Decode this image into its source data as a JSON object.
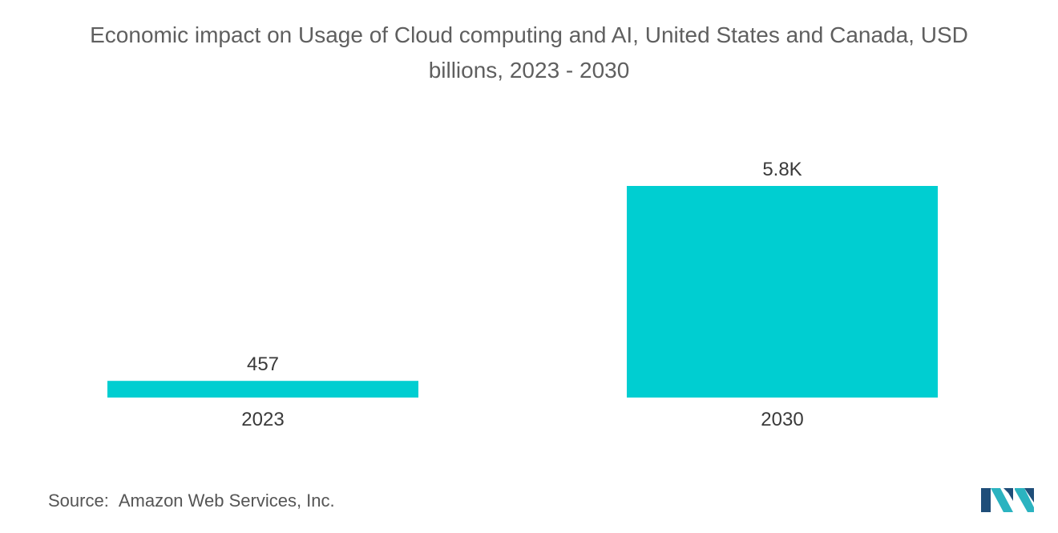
{
  "chart_data": {
    "type": "bar",
    "title_line1": "Economic impact on Usage of Cloud computing and AI, United States and Canada, USD",
    "title_line2": "billions, 2023 - 2030",
    "categories": [
      "2023",
      "2030"
    ],
    "values": [
      457,
      5800
    ],
    "value_labels": [
      "457",
      "5.8K"
    ],
    "xlabel": "",
    "ylabel": "",
    "ylim": [
      0,
      5800
    ],
    "grid": false,
    "bar_color": "#00CED1"
  },
  "footer": {
    "source_label": "Source:",
    "source_text": "Amazon Web Services, Inc."
  },
  "colors": {
    "title": "#5f5f5f",
    "label": "#3a3a3a",
    "logo_dark": "#1f4e79",
    "logo_light": "#2bb3c0"
  },
  "logo": {
    "icon": "mordor-logo-icon"
  }
}
